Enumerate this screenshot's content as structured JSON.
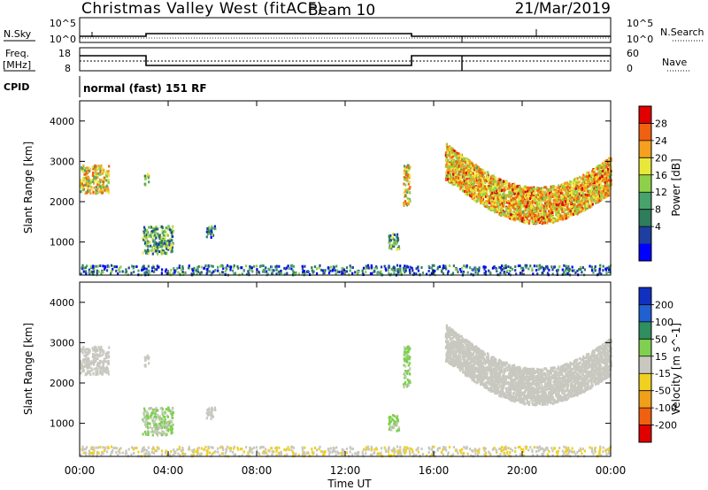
{
  "header": {
    "station": "Christmas Valley West (fitACF)",
    "beam": "Beam 10",
    "date": "21/Mar/2019"
  },
  "noise_panel": {
    "left_label": "N.Sky",
    "right_label": "N.Search",
    "left_ticks": [
      "10^5",
      "10^0"
    ],
    "right_ticks": [
      "10^5",
      "10^0"
    ]
  },
  "freq_panel": {
    "left_label_1": "Freq.",
    "left_label_2": "[MHz]",
    "right_label": "Nave",
    "left_ticks": [
      "18",
      "8"
    ],
    "right_ticks": [
      "60",
      "0"
    ]
  },
  "cpid_panel": {
    "label": "CPID",
    "mode_text": "normal (fast) 151 RF"
  },
  "x_axis": {
    "label": "Time UT",
    "ticks": [
      "00:00",
      "04:00",
      "08:00",
      "12:00",
      "16:00",
      "20:00",
      "00:00"
    ]
  },
  "power_panel": {
    "ylabel": "Slant Range [km]",
    "yticks": [
      "4000",
      "3000",
      "2000",
      "1000"
    ],
    "colorbar_label": "Power [dB]",
    "colorbar_ticks": [
      "28",
      "24",
      "20",
      "16",
      "12",
      "8",
      "4"
    ],
    "colors": [
      "#0000ff",
      "#1f3fa0",
      "#2e7d5c",
      "#49a26b",
      "#8fd04a",
      "#e8e83a",
      "#f5a01e",
      "#f06010",
      "#e00000"
    ]
  },
  "velocity_panel": {
    "ylabel": "Slant Range [km]",
    "yticks": [
      "4000",
      "3000",
      "2000",
      "1000"
    ],
    "colorbar_label": "Velocity [m s^-1]",
    "colorbar_ticks": [
      "200",
      "100",
      "50",
      "15",
      "-15",
      "-50",
      "-100",
      "-200"
    ],
    "colors": [
      "#1030c0",
      "#2060d0",
      "#2f8f5f",
      "#7fd050",
      "#c8c8c0",
      "#f0d020",
      "#f0a018",
      "#f06010",
      "#e00000"
    ]
  },
  "chart_data": {
    "type": "heatmap",
    "x_range_hours": [
      0,
      24
    ],
    "y_range_km": [
      180,
      4500
    ],
    "power_scale_db": [
      0,
      32
    ],
    "velocity_scale_ms": [
      -250,
      250
    ],
    "scatter_regions": [
      {
        "t": [
          0.0,
          1.3
        ],
        "r": [
          2200,
          2900
        ],
        "power": 20,
        "velocity": 0
      },
      {
        "t": [
          2.9,
          3.1
        ],
        "r": [
          2400,
          2700
        ],
        "power": 16,
        "velocity": 0
      },
      {
        "t": [
          2.8,
          4.2
        ],
        "r": [
          700,
          1400
        ],
        "power": 12,
        "velocity": 30
      },
      {
        "t": [
          5.7,
          6.1
        ],
        "r": [
          1100,
          1400
        ],
        "power": 8,
        "velocity": 0
      },
      {
        "t": [
          13.9,
          14.4
        ],
        "r": [
          800,
          1200
        ],
        "power": 12,
        "velocity": 40
      },
      {
        "t": [
          14.6,
          14.9
        ],
        "r": [
          1900,
          2900
        ],
        "power": 20,
        "velocity": 40
      },
      {
        "t": [
          16.5,
          24.0
        ],
        "r": [
          1400,
          3200
        ],
        "power": 22,
        "velocity": 0
      },
      {
        "t": [
          0.0,
          24.0
        ],
        "r": [
          180,
          420
        ],
        "power": 8,
        "velocity": -20
      }
    ]
  }
}
